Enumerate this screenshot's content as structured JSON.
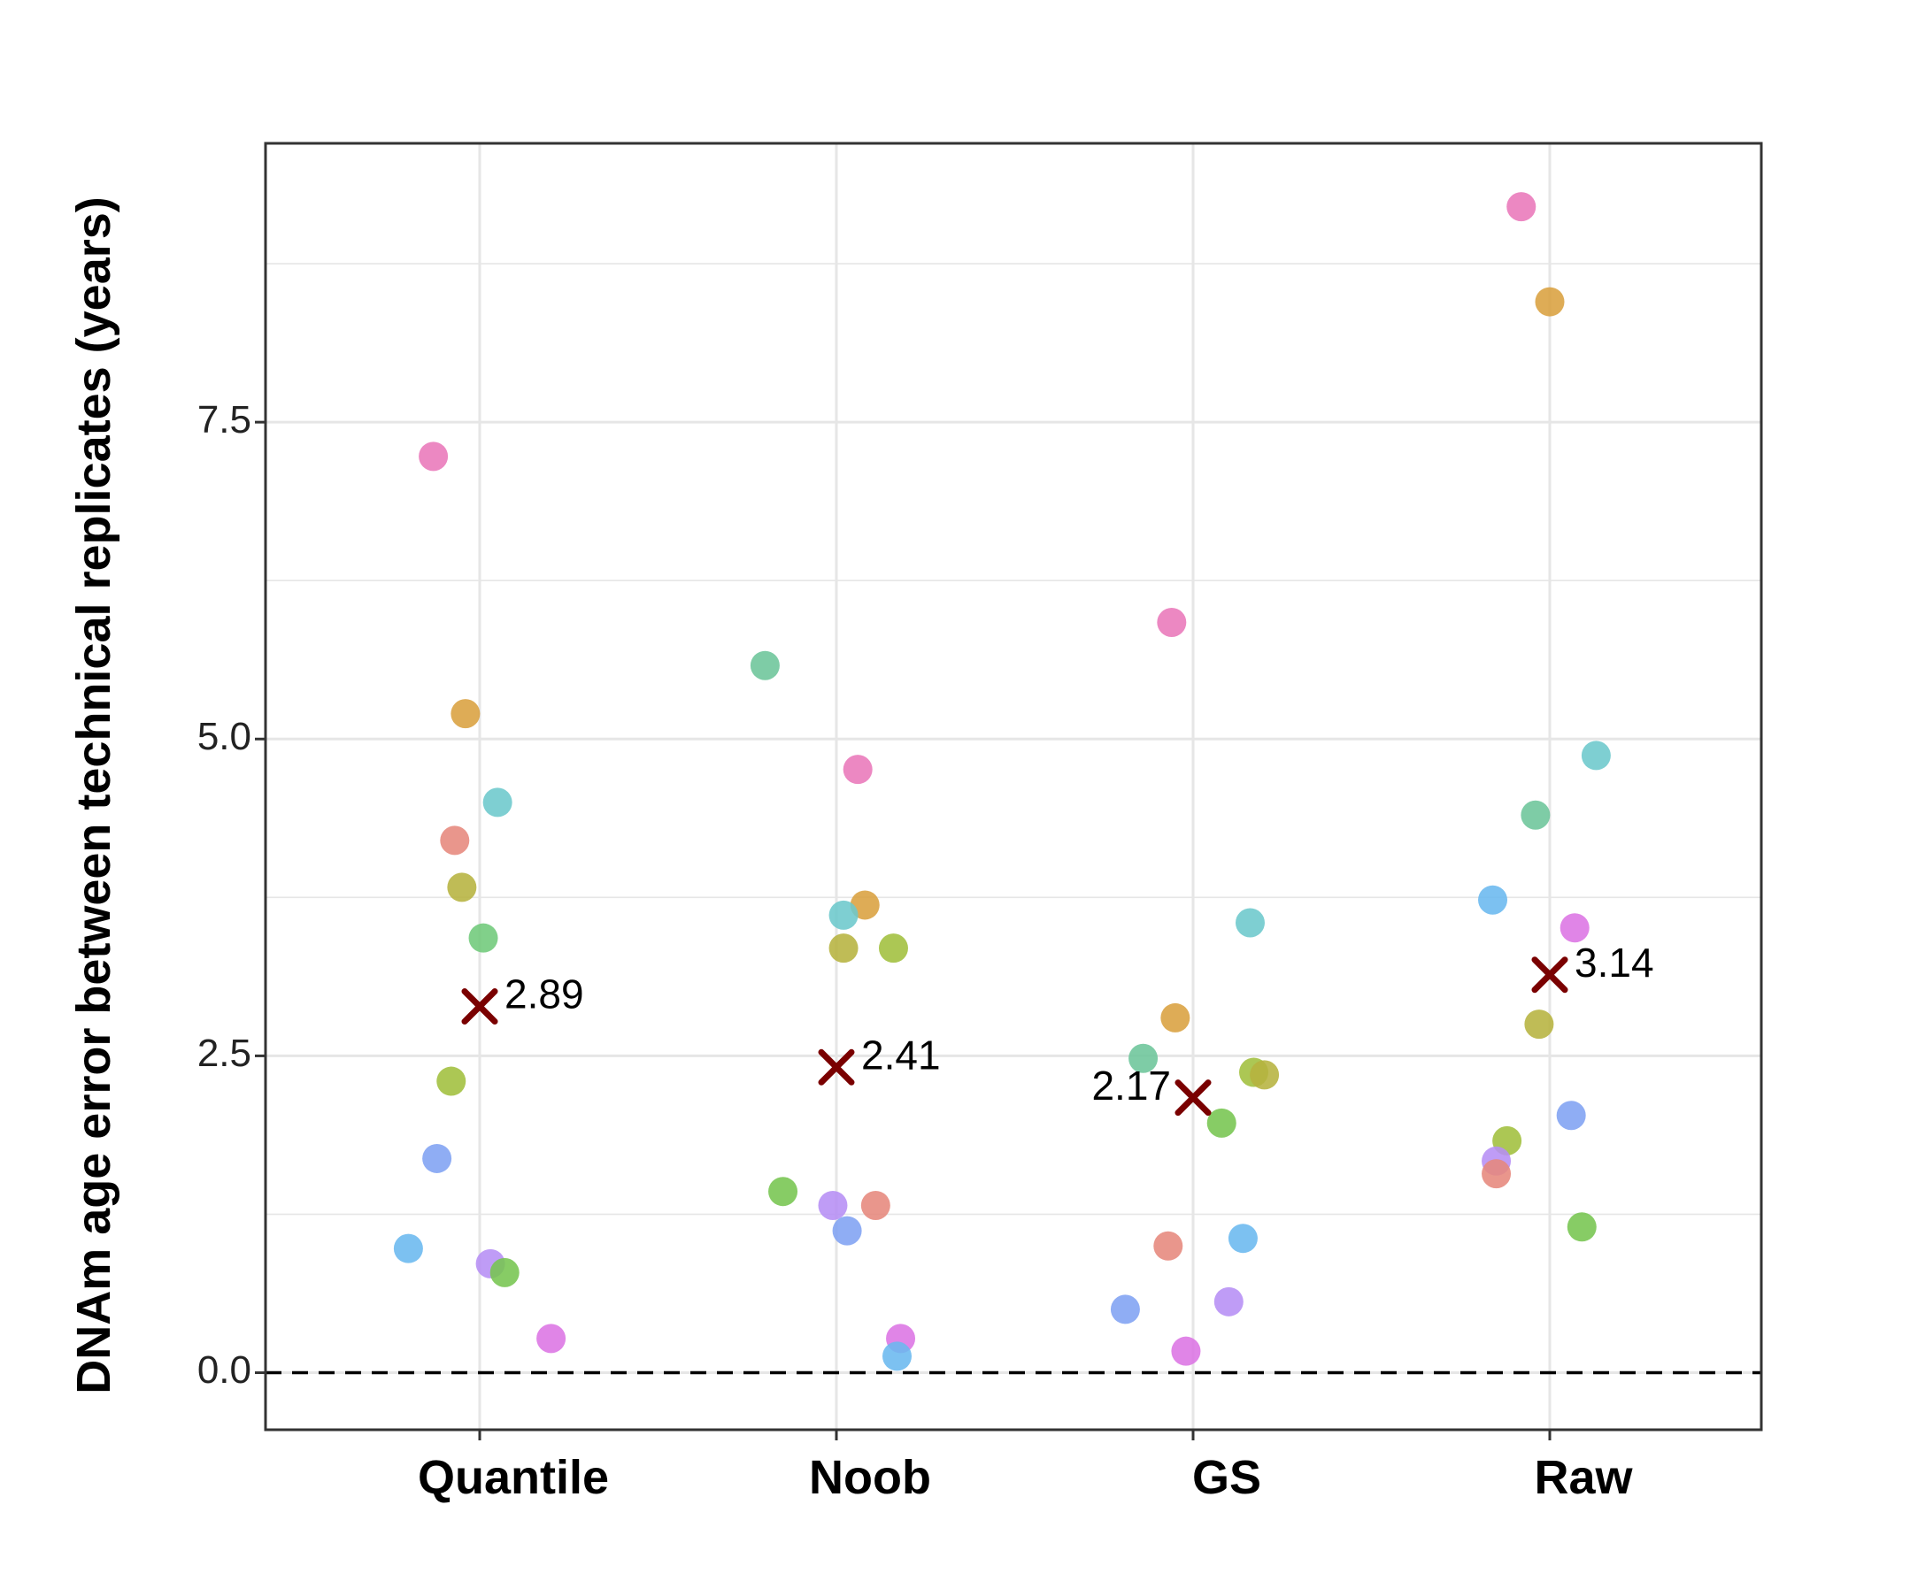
{
  "chart_data": {
    "type": "scatter",
    "title": "",
    "xlabel": "",
    "ylabel": "DNAm age error between technical replicates (years)",
    "categories": [
      "Quantile",
      "Noob",
      "GS",
      "Raw"
    ],
    "ylim": [
      -0.45,
      9.7
    ],
    "yticks": [
      0.0,
      2.5,
      5.0,
      7.5
    ],
    "ytick_labels": [
      "0.0",
      "2.5",
      "5.0",
      "7.5"
    ],
    "grid": true,
    "reference_line": {
      "y": 0.0,
      "style": "dashed"
    },
    "legend": "none",
    "mean_marker_color": "#7a0000",
    "means": [
      {
        "category": "Quantile",
        "value": 2.89,
        "label": "2.89"
      },
      {
        "category": "Noob",
        "value": 2.41,
        "label": "2.41"
      },
      {
        "category": "GS",
        "value": 2.17,
        "label": "2.17"
      },
      {
        "category": "Raw",
        "value": 3.14,
        "label": "3.14"
      }
    ],
    "points": [
      {
        "category": "Quantile",
        "x": -0.13,
        "y": 7.23,
        "color": "#e977b9"
      },
      {
        "category": "Quantile",
        "x": -0.04,
        "y": 5.2,
        "color": "#d9a03f"
      },
      {
        "category": "Quantile",
        "x": 0.05,
        "y": 4.5,
        "color": "#6cc8cc"
      },
      {
        "category": "Quantile",
        "x": -0.07,
        "y": 4.2,
        "color": "#e6877c"
      },
      {
        "category": "Quantile",
        "x": -0.05,
        "y": 3.83,
        "color": "#b6b33f"
      },
      {
        "category": "Quantile",
        "x": 0.01,
        "y": 3.43,
        "color": "#6fca7a"
      },
      {
        "category": "Quantile",
        "x": -0.08,
        "y": 2.3,
        "color": "#a0bf3c"
      },
      {
        "category": "Quantile",
        "x": -0.12,
        "y": 1.69,
        "color": "#7fa2f3"
      },
      {
        "category": "Quantile",
        "x": -0.2,
        "y": 0.98,
        "color": "#6ab8ef"
      },
      {
        "category": "Quantile",
        "x": 0.03,
        "y": 0.86,
        "color": "#b68ef5"
      },
      {
        "category": "Quantile",
        "x": 0.07,
        "y": 0.79,
        "color": "#76c550"
      },
      {
        "category": "Quantile",
        "x": 0.2,
        "y": 0.27,
        "color": "#dc74e4"
      },
      {
        "category": "Noob",
        "x": -0.2,
        "y": 5.58,
        "color": "#6cc59a"
      },
      {
        "category": "Noob",
        "x": 0.06,
        "y": 4.76,
        "color": "#e977b9"
      },
      {
        "category": "Noob",
        "x": 0.08,
        "y": 3.69,
        "color": "#d9a03f"
      },
      {
        "category": "Noob",
        "x": 0.02,
        "y": 3.61,
        "color": "#6cc8cc"
      },
      {
        "category": "Noob",
        "x": 0.02,
        "y": 3.35,
        "color": "#b6b33f"
      },
      {
        "category": "Noob",
        "x": 0.16,
        "y": 3.35,
        "color": "#a0bf3c"
      },
      {
        "category": "Noob",
        "x": -0.15,
        "y": 1.43,
        "color": "#76c550"
      },
      {
        "category": "Noob",
        "x": 0.11,
        "y": 1.32,
        "color": "#e6877c"
      },
      {
        "category": "Noob",
        "x": -0.01,
        "y": 1.32,
        "color": "#b68ef5"
      },
      {
        "category": "Noob",
        "x": 0.03,
        "y": 1.12,
        "color": "#7fa2f3"
      },
      {
        "category": "Noob",
        "x": 0.18,
        "y": 0.27,
        "color": "#dc74e4"
      },
      {
        "category": "Noob",
        "x": 0.17,
        "y": 0.13,
        "color": "#6ab8ef"
      },
      {
        "category": "GS",
        "x": -0.06,
        "y": 5.92,
        "color": "#e977b9"
      },
      {
        "category": "GS",
        "x": 0.16,
        "y": 3.55,
        "color": "#6cc8cc"
      },
      {
        "category": "GS",
        "x": -0.05,
        "y": 2.8,
        "color": "#d9a03f"
      },
      {
        "category": "GS",
        "x": -0.14,
        "y": 2.48,
        "color": "#6cc59a"
      },
      {
        "category": "GS",
        "x": 0.17,
        "y": 2.37,
        "color": "#a0bf3c"
      },
      {
        "category": "GS",
        "x": 0.2,
        "y": 2.35,
        "color": "#b6b33f"
      },
      {
        "category": "GS",
        "x": 0.08,
        "y": 1.97,
        "color": "#76c550"
      },
      {
        "category": "GS",
        "x": 0.14,
        "y": 1.06,
        "color": "#6ab8ef"
      },
      {
        "category": "GS",
        "x": -0.07,
        "y": 1.0,
        "color": "#e6877c"
      },
      {
        "category": "GS",
        "x": 0.1,
        "y": 0.56,
        "color": "#b68ef5"
      },
      {
        "category": "GS",
        "x": -0.19,
        "y": 0.5,
        "color": "#7fa2f3"
      },
      {
        "category": "GS",
        "x": -0.02,
        "y": 0.17,
        "color": "#dc74e4"
      },
      {
        "category": "Raw",
        "x": -0.08,
        "y": 9.2,
        "color": "#e977b9"
      },
      {
        "category": "Raw",
        "x": 0.0,
        "y": 8.45,
        "color": "#d9a03f"
      },
      {
        "category": "Raw",
        "x": 0.13,
        "y": 4.87,
        "color": "#6cc8cc"
      },
      {
        "category": "Raw",
        "x": -0.04,
        "y": 4.4,
        "color": "#6cc59a"
      },
      {
        "category": "Raw",
        "x": -0.16,
        "y": 3.73,
        "color": "#6ab8ef"
      },
      {
        "category": "Raw",
        "x": 0.07,
        "y": 3.51,
        "color": "#dc74e4"
      },
      {
        "category": "Raw",
        "x": -0.03,
        "y": 2.75,
        "color": "#b6b33f"
      },
      {
        "category": "Raw",
        "x": 0.06,
        "y": 2.03,
        "color": "#7fa2f3"
      },
      {
        "category": "Raw",
        "x": -0.12,
        "y": 1.83,
        "color": "#a0bf3c"
      },
      {
        "category": "Raw",
        "x": -0.15,
        "y": 1.67,
        "color": "#b68ef5"
      },
      {
        "category": "Raw",
        "x": -0.15,
        "y": 1.57,
        "color": "#e6877c"
      },
      {
        "category": "Raw",
        "x": 0.09,
        "y": 1.15,
        "color": "#76c550"
      }
    ]
  }
}
